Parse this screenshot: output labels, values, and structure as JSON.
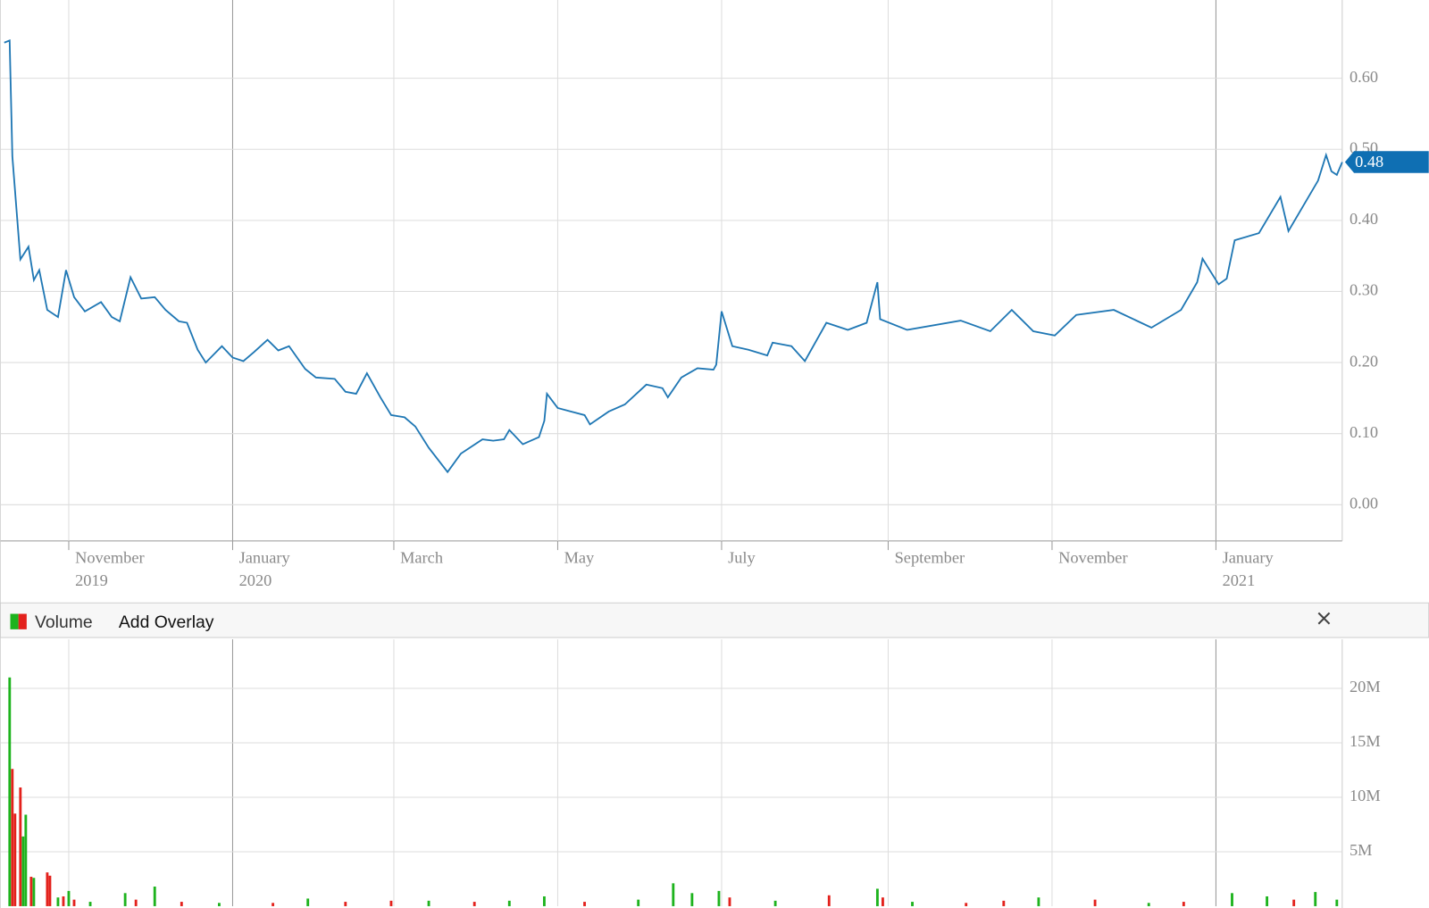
{
  "chart_data": [
    {
      "type": "line",
      "color": "#1f77b4",
      "xlim": [
        -86.5,
        413
      ],
      "xticks": [
        {
          "value": -61,
          "label": "November"
        },
        {
          "value": 0,
          "label": "January"
        },
        {
          "value": 60,
          "label": "March"
        },
        {
          "value": 121,
          "label": "May"
        },
        {
          "value": 182,
          "label": "July"
        },
        {
          "value": 244,
          "label": "September"
        },
        {
          "value": 305,
          "label": "November"
        },
        {
          "value": 366,
          "label": "January"
        }
      ],
      "xyears": [
        {
          "value": -61,
          "label": "2019"
        },
        {
          "value": 0,
          "label": "2020"
        },
        {
          "value": 366,
          "label": "2021"
        }
      ],
      "year_starts": [
        0,
        366
      ],
      "ylim": [
        -0.051,
        0.71
      ],
      "yticks": [
        {
          "value": 0,
          "label": "0.00"
        },
        {
          "value": 0.1,
          "label": "0.10"
        },
        {
          "value": 0.2,
          "label": "0.20"
        },
        {
          "value": 0.3,
          "label": "0.30"
        },
        {
          "value": 0.4,
          "label": "0.40"
        },
        {
          "value": 0.5,
          "label": "0.50"
        },
        {
          "value": 0.6,
          "label": "0.60"
        }
      ],
      "grid": true,
      "last_label": {
        "value": 0.482,
        "label": "0.48"
      },
      "x": [
        -85,
        -83,
        -82,
        -79,
        -76,
        -74,
        -72,
        -69,
        -65,
        -62,
        -59,
        -55,
        -49,
        -45,
        -42,
        -38,
        -34,
        -29,
        -25,
        -20,
        -17,
        -13,
        -10,
        -4,
        0,
        4,
        8,
        13,
        17,
        21,
        27,
        31,
        38,
        42,
        46,
        50,
        55,
        59,
        64,
        68,
        73,
        80,
        85,
        93,
        97,
        101,
        103,
        108,
        114,
        116,
        117,
        121,
        131,
        133,
        140,
        146,
        154,
        160,
        162,
        167,
        173,
        179,
        180,
        182,
        186,
        192,
        199,
        201,
        208,
        213,
        221,
        229,
        236,
        240,
        241,
        251,
        271,
        282,
        290,
        298,
        306,
        314,
        328,
        342,
        353,
        359,
        361,
        367,
        370,
        373,
        382,
        390,
        393,
        404,
        407,
        409,
        411,
        413
      ],
      "values": [
        0.65,
        0.653,
        0.49,
        0.345,
        0.363,
        0.316,
        0.33,
        0.274,
        0.264,
        0.33,
        0.292,
        0.272,
        0.285,
        0.264,
        0.258,
        0.32,
        0.29,
        0.292,
        0.274,
        0.258,
        0.256,
        0.218,
        0.2,
        0.223,
        0.207,
        0.202,
        0.215,
        0.232,
        0.217,
        0.223,
        0.191,
        0.179,
        0.177,
        0.159,
        0.156,
        0.185,
        0.151,
        0.126,
        0.123,
        0.11,
        0.08,
        0.046,
        0.072,
        0.092,
        0.09,
        0.092,
        0.105,
        0.085,
        0.095,
        0.118,
        0.156,
        0.136,
        0.126,
        0.113,
        0.131,
        0.141,
        0.169,
        0.164,
        0.151,
        0.179,
        0.192,
        0.19,
        0.197,
        0.272,
        0.223,
        0.218,
        0.21,
        0.228,
        0.223,
        0.202,
        0.256,
        0.246,
        0.256,
        0.313,
        0.261,
        0.246,
        0.259,
        0.244,
        0.274,
        0.244,
        0.238,
        0.267,
        0.274,
        0.249,
        0.274,
        0.313,
        0.346,
        0.31,
        0.318,
        0.372,
        0.382,
        0.433,
        0.385,
        0.456,
        0.492,
        0.469,
        0.464,
        0.482
      ]
    },
    {
      "type": "bar",
      "legend": "Volume",
      "overlay_button": "Add Overlay",
      "ylim": [
        0,
        24500000
      ],
      "yticks": [
        {
          "value": 5000000,
          "label": "5M"
        },
        {
          "value": 10000000,
          "label": "10M"
        },
        {
          "value": 15000000,
          "label": "15M"
        },
        {
          "value": 20000000,
          "label": "20M"
        }
      ],
      "grid": true,
      "series": [
        {
          "name": "Volume",
          "x": [
            -83,
            -82,
            -81,
            -79,
            -78,
            -77,
            -75,
            -74,
            -69,
            -68,
            -65,
            -63,
            -61,
            -59,
            -53,
            -40,
            -36,
            -29,
            -19,
            -5,
            15,
            28,
            42,
            59,
            73,
            90,
            103,
            116,
            131,
            151,
            164,
            171,
            181,
            185,
            202,
            222,
            240,
            242,
            253,
            273,
            287,
            300,
            321,
            341,
            354,
            372,
            385,
            395,
            403,
            411
          ],
          "values": [
            21000000,
            12600000,
            8500000,
            10900000,
            6400000,
            8400000,
            2700000,
            2600000,
            3100000,
            2800000,
            800000,
            900000,
            1400000,
            600000,
            400000,
            1200000,
            600000,
            1800000,
            400000,
            300000,
            300000,
            700000,
            400000,
            500000,
            500000,
            400000,
            500000,
            900000,
            400000,
            600000,
            2100000,
            1200000,
            1400000,
            800000,
            500000,
            1000000,
            1600000,
            800000,
            400000,
            300000,
            500000,
            800000,
            600000,
            300000,
            400000,
            1200000,
            900000,
            600000,
            1300000,
            600000
          ],
          "colors": [
            "#1db31d",
            "#e3211c",
            "#e3211c",
            "#e3211c",
            "#1db31d",
            "#1db31d",
            "#e3211c",
            "#1db31d",
            "#e3211c",
            "#e3211c",
            "#1db31d",
            "#e3211c",
            "#1db31d",
            "#e3211c",
            "#1db31d",
            "#1db31d",
            "#e3211c",
            "#1db31d",
            "#e3211c",
            "#1db31d",
            "#e3211c",
            "#1db31d",
            "#e3211c",
            "#e3211c",
            "#1db31d",
            "#e3211c",
            "#1db31d",
            "#1db31d",
            "#e3211c",
            "#1db31d",
            "#1db31d",
            "#1db31d",
            "#1db31d",
            "#e3211c",
            "#1db31d",
            "#e3211c",
            "#1db31d",
            "#e3211c",
            "#1db31d",
            "#e3211c",
            "#e3211c",
            "#1db31d",
            "#e3211c",
            "#1db31d",
            "#e3211c",
            "#1db31d",
            "#1db31d",
            "#e3211c",
            "#1db31d",
            "#1db31d"
          ]
        }
      ]
    }
  ]
}
